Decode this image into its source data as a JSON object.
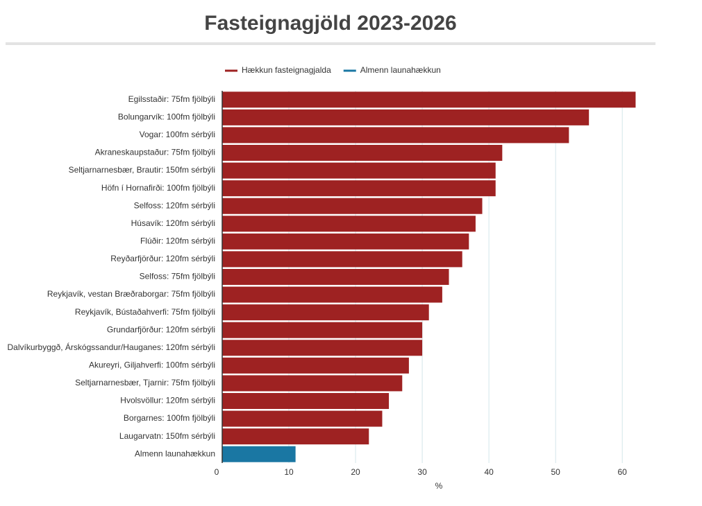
{
  "chart_data": {
    "type": "hbar",
    "title": "Fasteignagjöld 2023-2026",
    "categories": [
      "Egilsstaðir: 75fm fjölbýli",
      "Bolungarvík: 100fm fjölbýli",
      "Vogar: 100fm sérbýli",
      "Akraneskaupstaður: 75fm fjölbýli",
      "Seltjarnarnesbær, Brautir: 150fm sérbýli",
      "Höfn í Hornafirði: 100fm fjölbýli",
      "Selfoss: 120fm sérbýli",
      "Húsavík: 120fm sérbýli",
      "Flúðir: 120fm sérbýli",
      "Reyðarfjörður: 120fm sérbýli",
      "Selfoss: 75fm fjölbýli",
      "Reykjavík, vestan Bræðraborgar: 75fm fjölbýli",
      "Reykjavík, Bústaðahverfi: 75fm fjölbýli",
      "Grundarfjörður: 120fm sérbýli",
      "Dalvíkurbyggð, Árskógssandur/Hauganes: 120fm sérbýli",
      "Akureyri, Giljahverfi: 100fm sérbýli",
      "Seltjarnarnesbær, Tjarnir: 75fm fjölbýli",
      "Hvolsvöllur: 120fm sérbýli",
      "Borgarnes: 100fm fjölbýli",
      "Laugarvatn: 150fm sérbýli",
      "Almenn launahækkun"
    ],
    "series": [
      {
        "name": "Hækkun fasteignagjalda",
        "color": "#9e2222",
        "values": [
          62,
          55,
          52,
          42,
          41,
          41,
          39,
          38,
          37,
          36,
          34,
          33,
          31,
          30,
          30,
          28,
          27,
          25,
          24,
          22,
          null
        ]
      },
      {
        "name": "Almenn launahækkun",
        "color": "#1a77a3",
        "values": [
          null,
          null,
          null,
          null,
          null,
          null,
          null,
          null,
          null,
          null,
          null,
          null,
          null,
          null,
          null,
          null,
          null,
          null,
          null,
          null,
          11
        ]
      }
    ],
    "xlabel": "%",
    "xlim": [
      0,
      63
    ],
    "xticks": [
      0,
      10,
      20,
      30,
      40,
      50,
      60
    ],
    "grid": true
  }
}
